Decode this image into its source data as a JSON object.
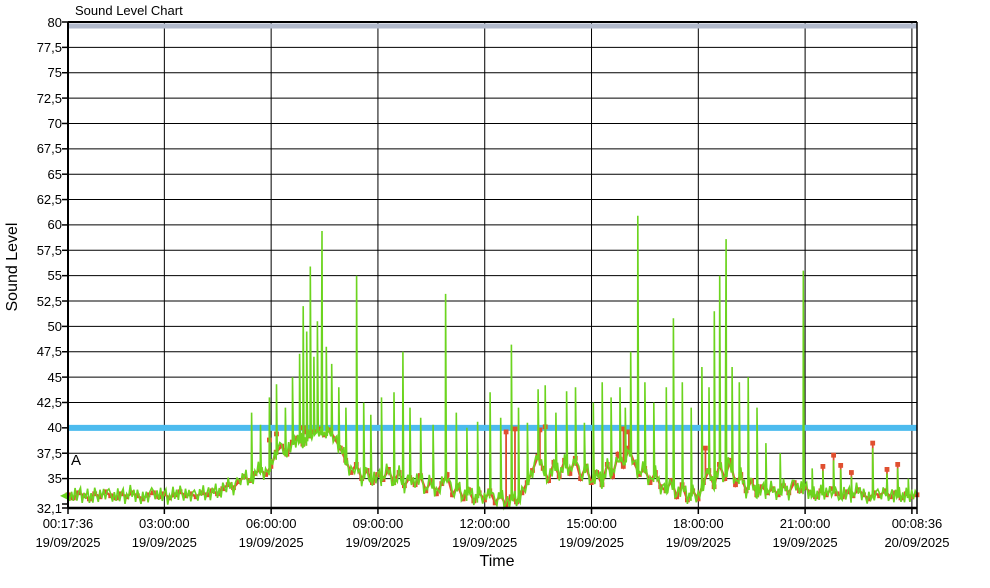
{
  "title": "Sound Level Chart",
  "axes": {
    "x_label": "Time",
    "y_label": "Sound Level"
  },
  "annotation": {
    "label": "A"
  },
  "colors": {
    "avg_series": "#e04f30",
    "peak_series": "#6cd41f",
    "threshold_40": "#4dbbee",
    "threshold_80": "#b2bacc",
    "grid": "#000000",
    "background": "#ffffff"
  },
  "chart_data": {
    "type": "line",
    "title": "Sound Level Chart",
    "xlabel": "Time",
    "ylabel": "Sound Level",
    "ylim": [
      32.1,
      80
    ],
    "x_hours_range": [
      0.2933,
      24.1433
    ],
    "grid": true,
    "y_ticks": [
      {
        "value": 80,
        "label": "80"
      },
      {
        "value": 77.5,
        "label": "77,5"
      },
      {
        "value": 75,
        "label": "75"
      },
      {
        "value": 72.5,
        "label": "72,5"
      },
      {
        "value": 70,
        "label": "70"
      },
      {
        "value": 67.5,
        "label": "67,5"
      },
      {
        "value": 65,
        "label": "65"
      },
      {
        "value": 62.5,
        "label": "62,5"
      },
      {
        "value": 60,
        "label": "60"
      },
      {
        "value": 57.5,
        "label": "57,5"
      },
      {
        "value": 55,
        "label": "55"
      },
      {
        "value": 52.5,
        "label": "52,5"
      },
      {
        "value": 50,
        "label": "50"
      },
      {
        "value": 47.5,
        "label": "47,5"
      },
      {
        "value": 45,
        "label": "45"
      },
      {
        "value": 42.5,
        "label": "42,5"
      },
      {
        "value": 40,
        "label": "40"
      },
      {
        "value": 37.5,
        "label": "37,5"
      },
      {
        "value": 35,
        "label": "35"
      },
      {
        "value": 32.1,
        "label": "32,1"
      }
    ],
    "x_ticks": [
      {
        "t": 0.2933,
        "time": "00:17:36",
        "date": "19/09/2025"
      },
      {
        "t": 3,
        "time": "03:00:00",
        "date": "19/09/2025"
      },
      {
        "t": 6,
        "time": "06:00:00",
        "date": "19/09/2025"
      },
      {
        "t": 9,
        "time": "09:00:00",
        "date": "19/09/2025"
      },
      {
        "t": 12,
        "time": "12:00:00",
        "date": "19/09/2025"
      },
      {
        "t": 15,
        "time": "15:00:00",
        "date": "19/09/2025"
      },
      {
        "t": 18,
        "time": "18:00:00",
        "date": "19/09/2025"
      },
      {
        "t": 21,
        "time": "21:00:00",
        "date": "19/09/2025"
      },
      {
        "t": 24.1433,
        "time": "00:08:36",
        "date": "20/09/2025"
      }
    ],
    "threshold_lines": [
      {
        "value": 40,
        "color": "#4dbbee",
        "width": 6
      },
      {
        "value": 80,
        "color": "#b2bacc",
        "width": 5
      }
    ],
    "series": [
      {
        "name": "sound-level-avg",
        "color": "#e04f30",
        "marker": "square",
        "x_start": 0.2933,
        "x_step": 0.15,
        "values": [
          33.4,
          33.1,
          33.6,
          33.3,
          33.0,
          33.5,
          33.2,
          33.7,
          33.3,
          33.1,
          33.5,
          33.2,
          33.6,
          33.3,
          33.0,
          33.4,
          33.6,
          33.2,
          33.5,
          33.1,
          33.4,
          33.7,
          33.3,
          33.5,
          33.2,
          33.6,
          33.4,
          33.8,
          33.5,
          34.0,
          34.4,
          34.1,
          34.7,
          35.2,
          34.8,
          35.5,
          35.9,
          35.4,
          36.2,
          37.6,
          38.2,
          37.4,
          38.6,
          39.0,
          38.4,
          39.2,
          39.6,
          39.9,
          39.3,
          39.8,
          38.9,
          38.0,
          36.8,
          35.6,
          36.4,
          35.0,
          35.8,
          34.6,
          35.4,
          34.9,
          35.9,
          34.6,
          35.6,
          34.3,
          35.1,
          34.4,
          35.3,
          33.8,
          34.8,
          33.5,
          34.5,
          35.4,
          33.4,
          34.3,
          33.0,
          33.9,
          32.8,
          33.6,
          32.9,
          33.8,
          32.6,
          33.4,
          32.4,
          33.2,
          32.7,
          33.6,
          34.6,
          35.8,
          37.2,
          36.0,
          34.8,
          36.6,
          35.2,
          36.8,
          35.5,
          37.0,
          35.0,
          36.2,
          34.6,
          35.6,
          34.4,
          36.4,
          35.2,
          37.4,
          36.2,
          38.0,
          36.6,
          35.4,
          36.0,
          34.6,
          35.6,
          34.2,
          33.8,
          34.8,
          33.2,
          34.4,
          32.9,
          33.8,
          33.0,
          34.6,
          35.8,
          34.2,
          36.4,
          35.0,
          36.8,
          34.4,
          35.4,
          33.8,
          34.8,
          33.4,
          34.2,
          33.6,
          34.0,
          33.4,
          34.3,
          33.6,
          34.6,
          33.8,
          34.2,
          33.6,
          33.2,
          33.8,
          33.4,
          34.0,
          33.5,
          33.2,
          33.7,
          33.3,
          33.9,
          33.4,
          33.0,
          33.6,
          33.3,
          33.8,
          33.2,
          33.6,
          33.1,
          33.5,
          33.2,
          33.4
        ],
        "extra_spike_markers": [
          [
            5.95,
            38.8
          ],
          [
            6.15,
            39.4
          ],
          [
            6.9,
            40.0
          ],
          [
            7.0,
            39.6
          ],
          [
            12.6,
            39.6
          ],
          [
            12.85,
            39.9
          ],
          [
            13.55,
            39.8
          ],
          [
            13.7,
            40.1
          ],
          [
            15.9,
            39.9
          ],
          [
            16.05,
            39.6
          ],
          [
            18.2,
            38.0
          ],
          [
            21.5,
            36.2
          ],
          [
            21.8,
            37.3
          ],
          [
            22.0,
            36.3
          ],
          [
            22.3,
            35.6
          ],
          [
            22.9,
            38.5
          ],
          [
            23.3,
            35.9
          ],
          [
            23.6,
            36.4
          ]
        ]
      },
      {
        "name": "sound-level-peaks",
        "color": "#6cd41f",
        "jitter": [
          0.2,
          -0.5,
          0.5,
          -0.3,
          0.8,
          -0.6,
          0.1,
          0.6,
          -0.8,
          0.3,
          -0.2,
          0.9,
          -0.4,
          0.4,
          -0.7,
          0.6,
          0.0,
          -0.6,
          0.7,
          -0.3,
          0.45,
          -0.75,
          0.25,
          0.55
        ],
        "jitter_subdiv": 3,
        "spikes": [
          [
            5.45,
            41.5
          ],
          [
            5.7,
            40.3
          ],
          [
            5.95,
            43.0
          ],
          [
            6.15,
            44.3
          ],
          [
            6.4,
            42.0
          ],
          [
            6.6,
            45.0
          ],
          [
            6.8,
            47.3
          ],
          [
            6.9,
            52.0
          ],
          [
            7.0,
            49.5
          ],
          [
            7.1,
            55.9
          ],
          [
            7.2,
            47.0
          ],
          [
            7.3,
            50.5
          ],
          [
            7.43,
            59.4
          ],
          [
            7.55,
            48.0
          ],
          [
            7.7,
            46.3
          ],
          [
            7.9,
            44.0
          ],
          [
            8.1,
            42.0
          ],
          [
            8.4,
            55.0
          ],
          [
            8.6,
            42.5
          ],
          [
            8.8,
            41.3
          ],
          [
            9.1,
            43.0
          ],
          [
            9.45,
            43.5
          ],
          [
            9.7,
            47.5
          ],
          [
            9.9,
            42.0
          ],
          [
            10.2,
            41.0
          ],
          [
            10.55,
            40.3
          ],
          [
            10.9,
            53.2
          ],
          [
            11.2,
            41.5
          ],
          [
            11.5,
            40.0
          ],
          [
            11.8,
            40.6
          ],
          [
            12.15,
            43.5
          ],
          [
            12.45,
            41.0
          ],
          [
            12.75,
            48.2
          ],
          [
            12.95,
            42.0
          ],
          [
            13.2,
            40.5
          ],
          [
            13.5,
            43.8
          ],
          [
            13.7,
            44.2
          ],
          [
            14.0,
            41.5
          ],
          [
            14.3,
            43.6
          ],
          [
            14.55,
            44.0
          ],
          [
            14.8,
            40.5
          ],
          [
            15.05,
            42.5
          ],
          [
            15.3,
            44.5
          ],
          [
            15.55,
            43.0
          ],
          [
            15.8,
            44.0
          ],
          [
            15.95,
            42.0
          ],
          [
            16.1,
            47.5
          ],
          [
            16.3,
            60.9
          ],
          [
            16.5,
            44.5
          ],
          [
            16.75,
            42.5
          ],
          [
            17.1,
            44.0
          ],
          [
            17.3,
            50.8
          ],
          [
            17.55,
            44.5
          ],
          [
            17.8,
            42.0
          ],
          [
            18.1,
            46.0
          ],
          [
            18.3,
            44.0
          ],
          [
            18.45,
            51.5
          ],
          [
            18.6,
            55.0
          ],
          [
            18.78,
            58.6
          ],
          [
            18.95,
            46.0
          ],
          [
            19.15,
            44.5
          ],
          [
            19.4,
            45.0
          ],
          [
            19.65,
            42.0
          ],
          [
            19.9,
            38.5
          ],
          [
            20.3,
            37.5
          ],
          [
            20.95,
            55.5
          ],
          [
            21.2,
            36.0
          ],
          [
            21.5,
            35.8
          ],
          [
            21.8,
            36.8
          ],
          [
            22.0,
            35.9
          ],
          [
            22.3,
            35.2
          ],
          [
            22.9,
            38.0
          ],
          [
            23.3,
            35.5
          ],
          [
            23.6,
            36.0
          ],
          [
            23.9,
            35.0
          ]
        ]
      }
    ]
  }
}
